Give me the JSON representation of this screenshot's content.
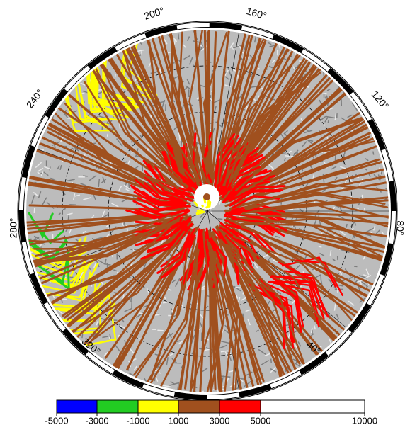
{
  "map": {
    "longitude_labels": [
      "200°",
      "160°",
      "240°",
      "120°",
      "280°",
      "80°",
      "320°",
      "40°"
    ],
    "colorbar": {
      "ticks": [
        -5000,
        -3000,
        -1000,
        1000,
        3000,
        5000,
        10000
      ],
      "colors": [
        "#0000ff",
        "#22cc22",
        "#ffff00",
        "#a0501e",
        "#ff0000",
        "#ffffff"
      ]
    }
  }
}
